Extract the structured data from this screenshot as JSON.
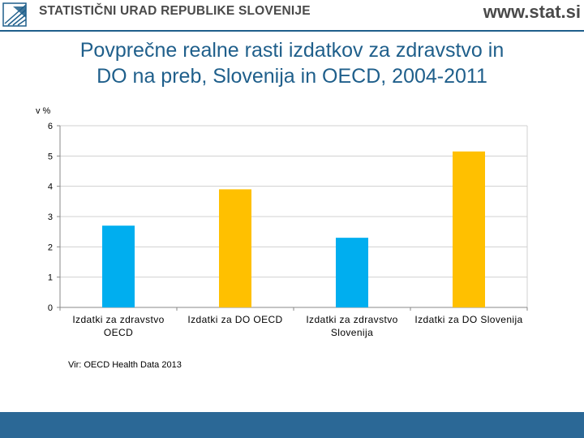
{
  "header": {
    "organization": "STATISTIČNI URAD REPUBLIKE SLOVENIJE",
    "website": "www.stat.si",
    "logo_icon": "sors-logo-icon"
  },
  "chart_data": {
    "type": "bar",
    "title": "Povprečne realne rasti izdatkov za zdravstvo in DO na preb, Slovenija in OECD, 2004-2011",
    "title_lines": [
      "Povprečne realne rasti izdatkov za zdravstvo in",
      "DO na preb, Slovenija in OECD, 2004-2011"
    ],
    "ylabel": "v %",
    "xlabel": "",
    "ylim": [
      0,
      6
    ],
    "yticks": [
      "0",
      "1",
      "2",
      "3",
      "4",
      "5",
      "6"
    ],
    "categories": [
      [
        "Izdatki za zdravstvo",
        "OECD"
      ],
      [
        "Izdatki za DO OECD"
      ],
      [
        "Izdatki za zdravstvo",
        "Slovenija"
      ],
      [
        "Izdatki za DO Slovenija"
      ]
    ],
    "values": [
      2.7,
      3.9,
      2.3,
      5.15
    ],
    "colors": [
      "#00aeef",
      "#ffc000",
      "#00aeef",
      "#ffc000"
    ],
    "grid": true
  },
  "source": "Vir: OECD Health Data 2013",
  "colors": {
    "accent": "#1f5f8b",
    "footer": "#2b6896",
    "text": "#4a4a4a"
  }
}
